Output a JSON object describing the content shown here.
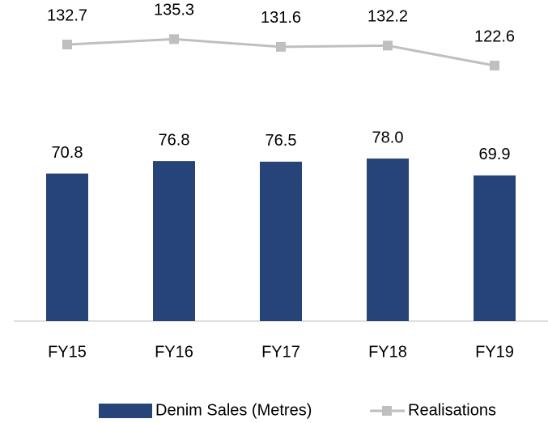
{
  "chart_data": {
    "type": "bar-line",
    "categories": [
      "FY15",
      "FY16",
      "FY17",
      "FY18",
      "FY19"
    ],
    "series": [
      {
        "name": "Denim Sales (Metres)",
        "type": "bar",
        "color": "#264478",
        "values": [
          70.8,
          76.8,
          76.5,
          78.0,
          69.9
        ],
        "value_labels": [
          "70.8",
          "76.8",
          "76.5",
          "78.0",
          "69.9"
        ]
      },
      {
        "name": "Realisations",
        "type": "line",
        "axis": "y2",
        "color": "#bfbfbf",
        "values": [
          132.7,
          135.3,
          131.6,
          132.2,
          122.6
        ],
        "value_labels": [
          "132.7",
          "135.3",
          "131.6",
          "132.2",
          "122.6"
        ]
      }
    ],
    "ylim": [
      0,
      150
    ],
    "y2lim": [
      0,
      150
    ],
    "legend": "bottom"
  }
}
